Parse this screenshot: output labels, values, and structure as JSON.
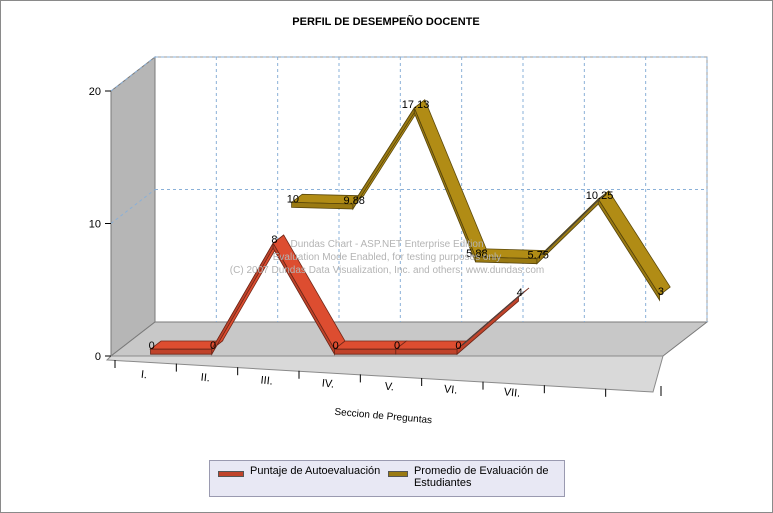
{
  "chart_data": {
    "type": "line",
    "title": "PERFIL DE DESEMPEÑO DOCENTE",
    "xlabel": "Seccion de Preguntas",
    "ylabel": "",
    "ylim": [
      0,
      20
    ],
    "yticks": [
      "0",
      "10",
      "20"
    ],
    "categories": [
      "I.",
      "II.",
      "III.",
      "IV.",
      "V.",
      "VI.",
      "VII.",
      "",
      ""
    ],
    "series": [
      {
        "name": "Puntaje de Autoevaluación",
        "color": "#c0432a",
        "values": [
          0,
          0,
          8,
          0,
          0,
          0,
          4,
          null,
          null
        ],
        "labels": [
          "0",
          "0",
          "8",
          "0",
          "0",
          "0",
          "4",
          "",
          ""
        ]
      },
      {
        "name": "Promedio de Evaluación de Estudiantes",
        "color": "#9a7a12",
        "values": [
          null,
          null,
          10,
          9.88,
          17.13,
          5.88,
          5.75,
          10.25,
          3
        ],
        "labels": [
          "",
          "",
          "10",
          "9.88",
          "17.13",
          "5.88",
          "5.75",
          "10.25",
          "3"
        ]
      }
    ],
    "watermark": [
      "Dundas Chart - ASP.NET Enterprise Edition",
      "Evaluation Mode Enabled, for testing purposes only",
      "(C) 2007 Dundas Data Visualization, Inc. and others, www.dundas.com"
    ],
    "grid": true,
    "legend_position": "bottom",
    "view": "3d"
  }
}
